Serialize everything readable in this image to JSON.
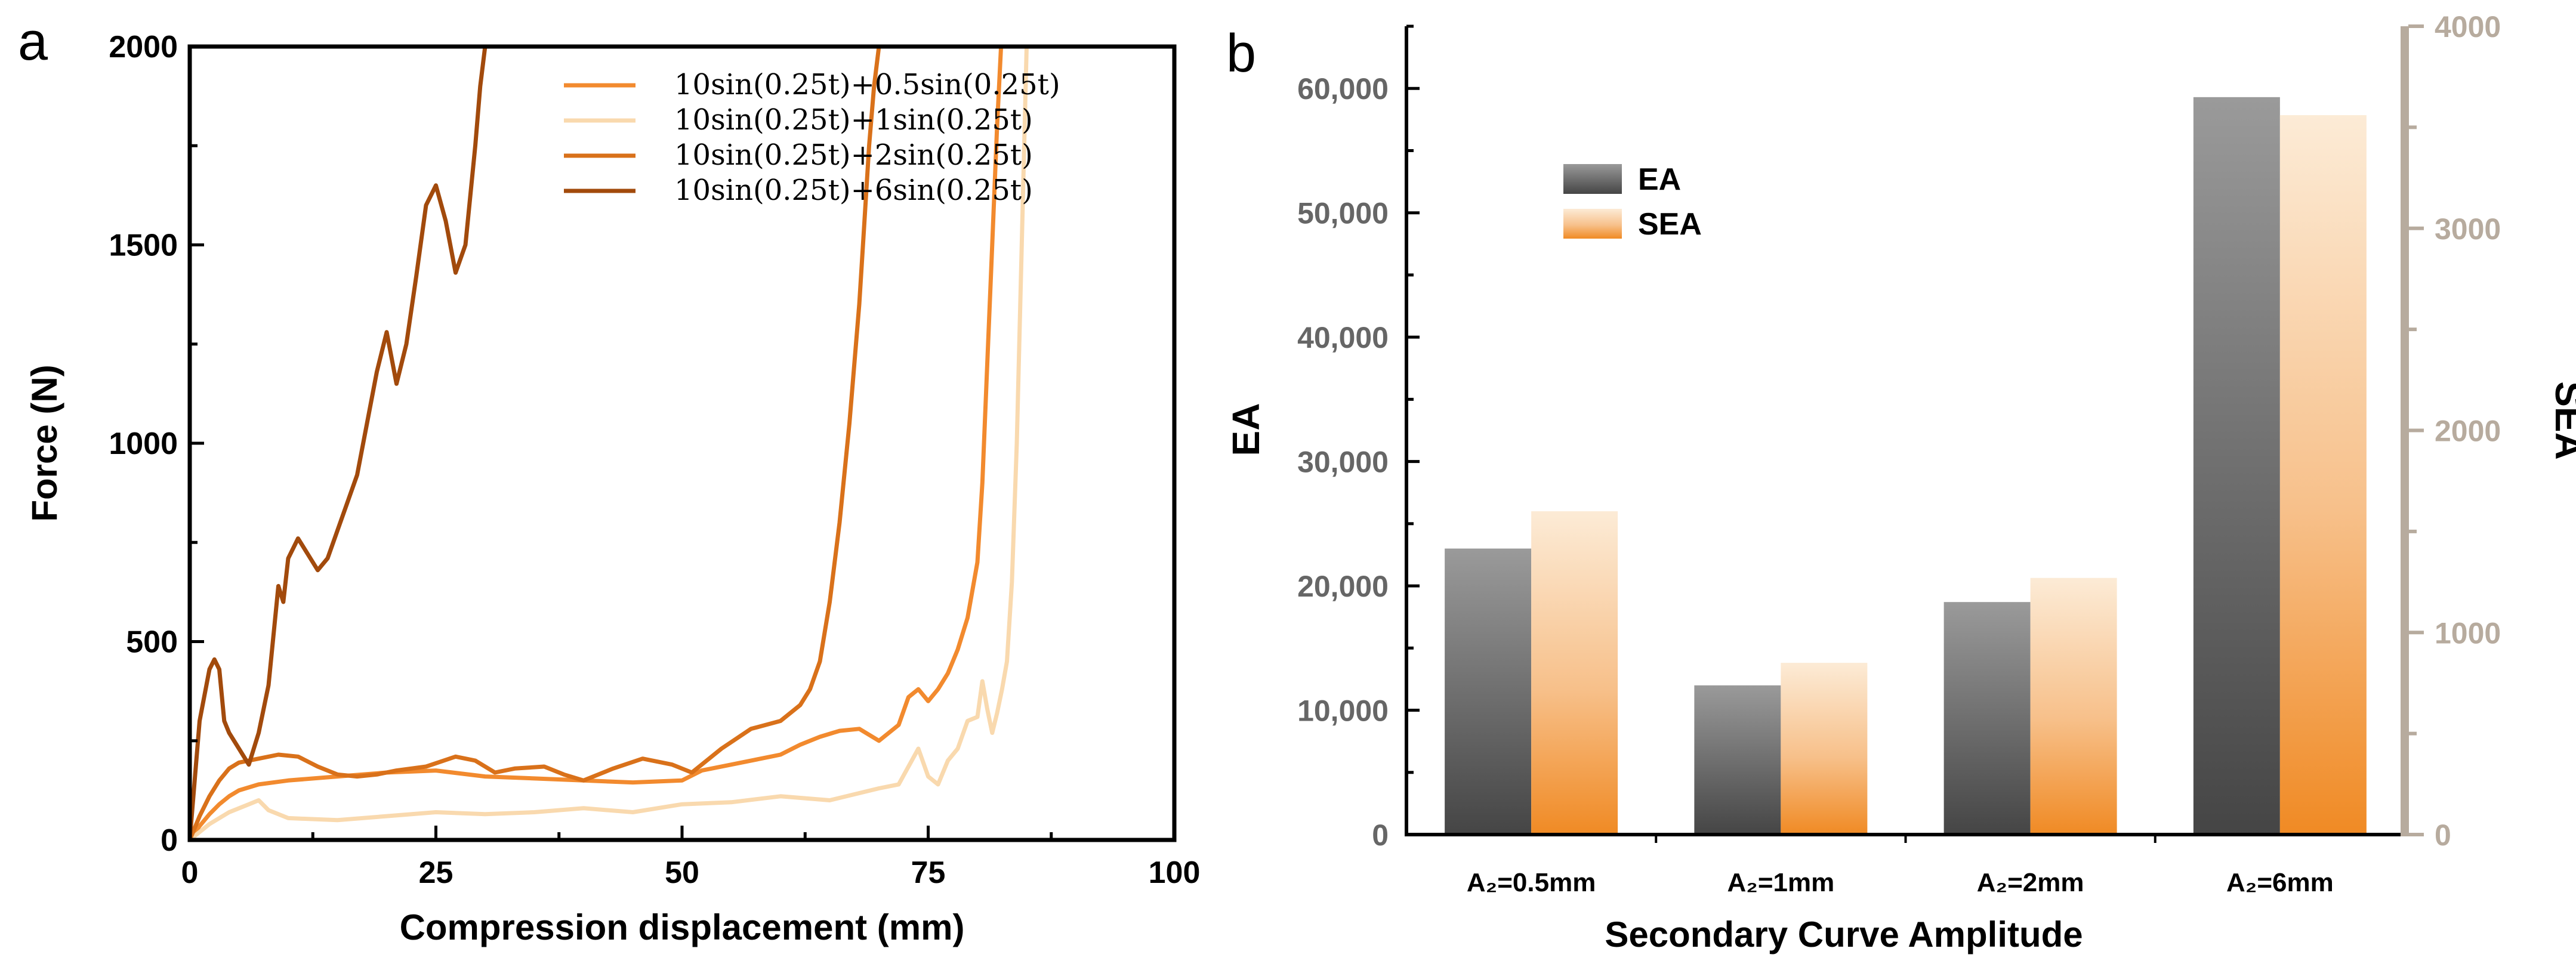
{
  "chart_data": [
    {
      "panel_label": "a",
      "type": "line",
      "title": "",
      "xlabel": "Compression displacement (mm)",
      "ylabel": "Force (N)",
      "xlim": [
        0,
        100
      ],
      "ylim": [
        0,
        2000
      ],
      "xticks": [
        0,
        25,
        50,
        75,
        100
      ],
      "xtick_labels": [
        "0",
        "25",
        "50",
        "75",
        "100"
      ],
      "yticks": [
        0,
        500,
        1000,
        1500,
        2000
      ],
      "ytick_labels": [
        "0",
        "500",
        "1000",
        "1500",
        "2000"
      ],
      "legend_position": "top-right",
      "series": [
        {
          "name": "10sin(0.25t)+0.5sin(0.25t)",
          "color": "#F28A2E",
          "x": [
            0,
            1,
            2,
            3,
            4,
            5,
            7,
            10,
            15,
            20,
            25,
            30,
            35,
            40,
            45,
            50,
            52,
            55,
            58,
            60,
            62,
            64,
            66,
            68,
            70,
            72,
            73,
            74,
            75,
            76,
            77,
            78,
            79,
            80,
            80.5,
            81,
            81.5,
            82,
            82.4
          ],
          "y": [
            0,
            35,
            65,
            90,
            110,
            125,
            140,
            150,
            160,
            170,
            175,
            160,
            155,
            150,
            145,
            150,
            175,
            190,
            205,
            215,
            240,
            260,
            275,
            280,
            250,
            290,
            360,
            380,
            350,
            380,
            420,
            480,
            560,
            700,
            900,
            1200,
            1500,
            1800,
            2000
          ]
        },
        {
          "name": "10sin(0.25t)+1sin(0.25t)",
          "color": "#F9D9AE",
          "x": [
            0,
            2,
            4,
            6,
            7,
            8,
            10,
            15,
            20,
            25,
            30,
            35,
            40,
            45,
            50,
            55,
            60,
            65,
            70,
            72,
            74,
            75,
            76,
            77,
            78,
            79,
            80,
            80.5,
            81,
            81.5,
            82,
            82.5,
            83,
            83.5,
            84,
            84.5,
            85
          ],
          "y": [
            0,
            40,
            70,
            90,
            100,
            75,
            55,
            50,
            60,
            70,
            65,
            70,
            80,
            70,
            90,
            95,
            110,
            100,
            130,
            140,
            230,
            160,
            140,
            200,
            230,
            300,
            310,
            400,
            330,
            270,
            320,
            380,
            450,
            650,
            1000,
            1500,
            2000
          ]
        },
        {
          "name": "10sin(0.25t)+2sin(0.25t)",
          "color": "#D9711A",
          "x": [
            0,
            1,
            2,
            3,
            4,
            5,
            7,
            9,
            11,
            13,
            15,
            17,
            19,
            21,
            24,
            27,
            29,
            31,
            33,
            36,
            38,
            40,
            43,
            46,
            49,
            51,
            54,
            57,
            60,
            62,
            63,
            64,
            65,
            66,
            67,
            68,
            68.5,
            69,
            69.5,
            70
          ],
          "y": [
            0,
            60,
            110,
            150,
            180,
            195,
            205,
            215,
            210,
            185,
            165,
            160,
            165,
            175,
            185,
            210,
            200,
            170,
            180,
            185,
            165,
            150,
            180,
            205,
            190,
            170,
            230,
            280,
            300,
            340,
            380,
            450,
            600,
            800,
            1050,
            1350,
            1550,
            1750,
            1900,
            2000
          ]
        },
        {
          "name": "10sin(0.25t)+6sin(0.25t)",
          "color": "#A24A0C",
          "x": [
            0,
            1,
            2,
            2.5,
            3,
            3.5,
            4,
            5,
            6,
            7,
            8,
            9,
            9.5,
            10,
            11,
            12,
            13,
            14,
            15,
            16,
            17,
            18,
            19,
            20,
            21,
            22,
            23,
            24,
            25,
            26,
            27,
            28,
            29,
            29.5,
            30
          ],
          "y": [
            0,
            300,
            430,
            455,
            430,
            300,
            270,
            230,
            190,
            270,
            390,
            640,
            600,
            710,
            760,
            720,
            680,
            710,
            780,
            850,
            920,
            1050,
            1180,
            1280,
            1150,
            1250,
            1420,
            1600,
            1650,
            1560,
            1430,
            1500,
            1750,
            1900,
            2000
          ]
        }
      ]
    },
    {
      "panel_label": "b",
      "type": "bar",
      "title": "",
      "xlabel": "Secondary Curve Amplitude",
      "ylabel": "EA",
      "y2label": "SEA",
      "categories": [
        "A₂=0.5mm",
        "A₂=1mm",
        "A₂=2mm",
        "A₂=6mm"
      ],
      "ylim": [
        0,
        65000
      ],
      "y2lim": [
        0,
        4000
      ],
      "yticks": [
        0,
        10000,
        20000,
        30000,
        40000,
        50000,
        60000
      ],
      "ytick_labels": [
        "0",
        "10,000",
        "20,000",
        "30,000",
        "40,000",
        "50,000",
        "60,000"
      ],
      "y2ticks": [
        0,
        1000,
        2000,
        3000,
        4000
      ],
      "y2tick_labels": [
        "0",
        "1000",
        "2000",
        "3000",
        "4000"
      ],
      "legend_position": "top-left",
      "series": [
        {
          "name": "EA",
          "axis": "left",
          "values": [
            23000,
            12000,
            18700,
            59300
          ],
          "color_top": "#9a9a9a",
          "color_bottom": "#454545"
        },
        {
          "name": "SEA",
          "axis": "right",
          "values": [
            1600,
            850,
            1270,
            3560
          ],
          "color_top": "#FCEBD6",
          "color_bottom": "#F08A24"
        }
      ]
    }
  ],
  "colors": {
    "axis": "#000000",
    "right_axis": "#B7AB9E",
    "tick_text_b": "#666666"
  }
}
